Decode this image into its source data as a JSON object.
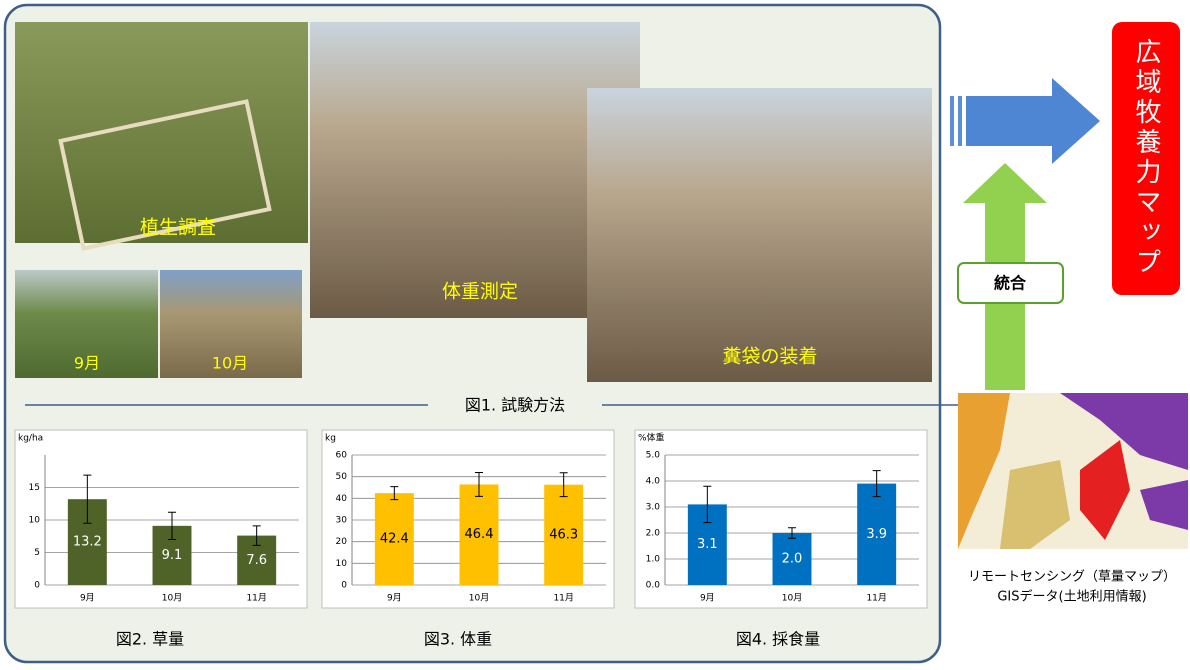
{
  "figure1": {
    "caption": "図1. 試験方法",
    "photo_labels": [
      "植生調査",
      "9月",
      "10月",
      "体重測定",
      "糞袋の装着"
    ]
  },
  "chart_data": [
    {
      "type": "bar",
      "caption": "図2. 草量",
      "y_label": "kg/ha",
      "categories": [
        "9月",
        "10月",
        "11月"
      ],
      "values": [
        13.2,
        9.1,
        7.6
      ],
      "errors": [
        3.7,
        2.1,
        1.5
      ],
      "color": "#4f6228",
      "label_color": "#ffffff",
      "ylim": [
        0,
        20
      ],
      "yticks": [
        0,
        5,
        10,
        15
      ],
      "grid": true
    },
    {
      "type": "bar",
      "caption": "図3. 体重",
      "y_label": "kg",
      "categories": [
        "9月",
        "10月",
        "11月"
      ],
      "values": [
        42.4,
        46.4,
        46.3
      ],
      "errors": [
        3,
        5.5,
        5.5
      ],
      "color": "#ffc000",
      "label_color": "#000000",
      "ylim": [
        0,
        60
      ],
      "yticks": [
        0,
        10,
        20,
        30,
        40,
        50,
        60
      ],
      "grid": true
    },
    {
      "type": "bar",
      "caption": "図4. 採食量",
      "y_label": "%体重",
      "categories": [
        "9月",
        "10月",
        "11月"
      ],
      "values": [
        3.1,
        2.0,
        3.9
      ],
      "value_labels": [
        "3.1",
        "2.0",
        "3.9"
      ],
      "errors": [
        0.7,
        0.2,
        0.5
      ],
      "color": "#0070c0",
      "label_color": "#ffffff",
      "ylim": [
        0,
        5
      ],
      "yticks": [
        {
          "value": 0,
          "label": "0.0"
        },
        {
          "value": 1,
          "label": "1.0"
        },
        {
          "value": 2,
          "label": "2.0"
        },
        {
          "value": 3,
          "label": "3.0"
        },
        {
          "value": 4,
          "label": "4.0"
        },
        {
          "value": 5,
          "label": "5.0"
        }
      ],
      "grid": true
    }
  ],
  "right": {
    "map_title": "広域牧養力マップ",
    "integrate": "統合",
    "rs_caption": "リモートセンシング（草量マップ）",
    "gis_caption": "GISデータ(土地利用情報)"
  }
}
